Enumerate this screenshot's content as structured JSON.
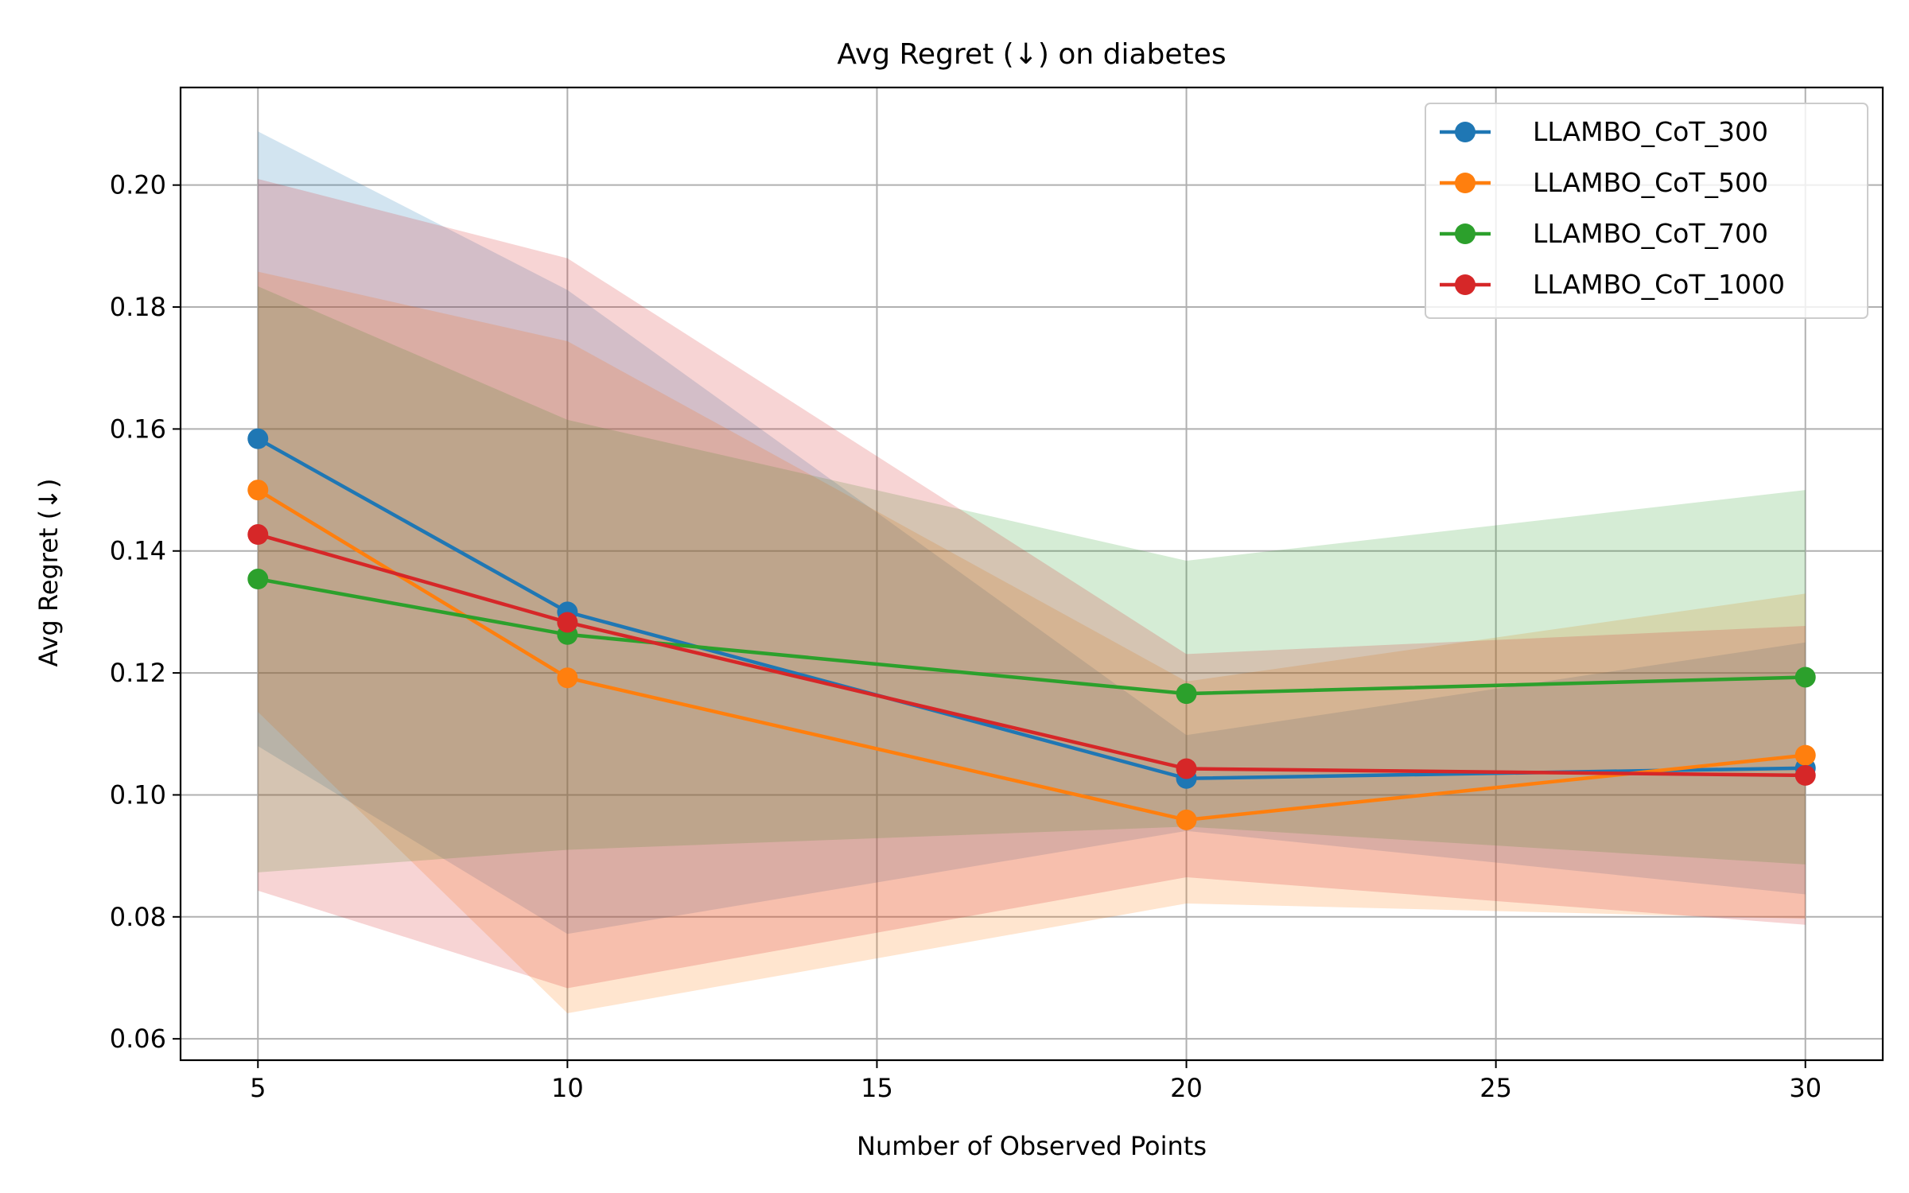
{
  "chart_data": {
    "type": "line",
    "title": "Avg Regret (↓) on diabetes",
    "xlabel": "Number of Observed Points",
    "ylabel": "Avg Regret (↓)",
    "xlim": [
      3.75,
      31.25
    ],
    "ylim": [
      0.0565,
      0.216
    ],
    "xticks": [
      5,
      10,
      15,
      20,
      25,
      30
    ],
    "yticks": [
      0.06,
      0.08,
      0.1,
      0.12,
      0.14,
      0.16,
      0.18,
      0.2
    ],
    "ytick_labels": [
      "0.06",
      "0.08",
      "0.10",
      "0.12",
      "0.14",
      "0.16",
      "0.18",
      "0.20"
    ],
    "grid": true,
    "legend_position": "top-right",
    "x": [
      5,
      10,
      20,
      30
    ],
    "series": [
      {
        "name": "LLAMBO_CoT_300",
        "color": "#1f77b4",
        "values": [
          0.1584,
          0.13,
          0.1027,
          0.1044
        ],
        "lower": [
          0.108,
          0.0772,
          0.0941,
          0.0837
        ],
        "upper": [
          0.2088,
          0.1828,
          0.1098,
          0.125
        ]
      },
      {
        "name": "LLAMBO_CoT_500",
        "color": "#ff7f0e",
        "values": [
          0.15,
          0.1192,
          0.0959,
          0.1065
        ],
        "lower": [
          0.1136,
          0.0642,
          0.0822,
          0.0797
        ],
        "upper": [
          0.1858,
          0.1744,
          0.1186,
          0.133
        ]
      },
      {
        "name": "LLAMBO_CoT_700",
        "color": "#2ca02c",
        "values": [
          0.1354,
          0.1263,
          0.1166,
          0.1193
        ],
        "lower": [
          0.0873,
          0.091,
          0.0948,
          0.0886
        ],
        "upper": [
          0.1834,
          0.1615,
          0.1384,
          0.15
        ]
      },
      {
        "name": "LLAMBO_CoT_1000",
        "color": "#d62728",
        "values": [
          0.1427,
          0.1283,
          0.1043,
          0.1032
        ],
        "lower": [
          0.0843,
          0.0683,
          0.0865,
          0.0787
        ],
        "upper": [
          0.201,
          0.188,
          0.1231,
          0.1277
        ]
      }
    ]
  }
}
